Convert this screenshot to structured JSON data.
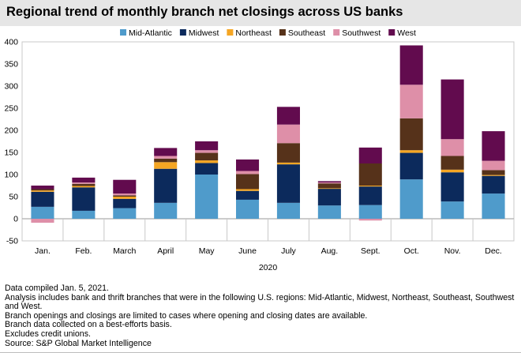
{
  "header": {
    "title": "Regional trend of monthly branch net closings across US banks"
  },
  "chart_data": {
    "type": "bar",
    "stacked": true,
    "title": "Regional trend of monthly branch net closings across US banks",
    "xlabel": "2020",
    "ylabel": "",
    "ylim": [
      -50,
      400
    ],
    "yticks": [
      -50,
      0,
      50,
      100,
      150,
      200,
      250,
      300,
      350,
      400
    ],
    "categories": [
      "Jan.",
      "Feb.",
      "March",
      "April",
      "May",
      "June",
      "July",
      "Aug.",
      "Sept.",
      "Oct.",
      "Nov.",
      "Dec."
    ],
    "legend_position": "top",
    "grid": false,
    "series": [
      {
        "name": "Mid-Atlantic",
        "color": "#4f9bcb",
        "values": [
          27,
          18,
          24,
          36,
          100,
          43,
          36,
          30,
          31,
          89,
          39,
          57
        ]
      },
      {
        "name": "Midwest",
        "color": "#0c2a5c",
        "values": [
          34,
          53,
          21,
          77,
          26,
          20,
          87,
          38,
          42,
          60,
          66,
          40
        ]
      },
      {
        "name": "Northeast",
        "color": "#f5a623",
        "values": [
          3,
          3,
          5,
          15,
          6,
          4,
          4,
          1,
          2,
          6,
          6,
          2
        ]
      },
      {
        "name": "Southeast",
        "color": "#56321a",
        "values": [
          3,
          5,
          3,
          8,
          17,
          34,
          44,
          11,
          50,
          72,
          31,
          11
        ]
      },
      {
        "name": "Southwest",
        "color": "#de8fa8",
        "values": [
          -9,
          3,
          4,
          6,
          6,
          7,
          42,
          2,
          -4,
          76,
          38,
          21
        ]
      },
      {
        "name": "West",
        "color": "#620b4e",
        "values": [
          8,
          11,
          31,
          18,
          20,
          26,
          40,
          3,
          36,
          89,
          135,
          67
        ]
      }
    ]
  },
  "footnotes": [
    "Data compiled Jan. 5, 2021.",
    "Analysis includes bank and thrift branches that were in the following U.S. regions: Mid-Atlantic, Midwest, Northeast, Southeast, Southwest and West.",
    "Branch openings and closings are limited to cases where opening and closing dates are available.",
    "Branch data collected on a best-efforts basis.",
    "Excludes credit unions.",
    "Source: S&P Global Market Intelligence"
  ]
}
